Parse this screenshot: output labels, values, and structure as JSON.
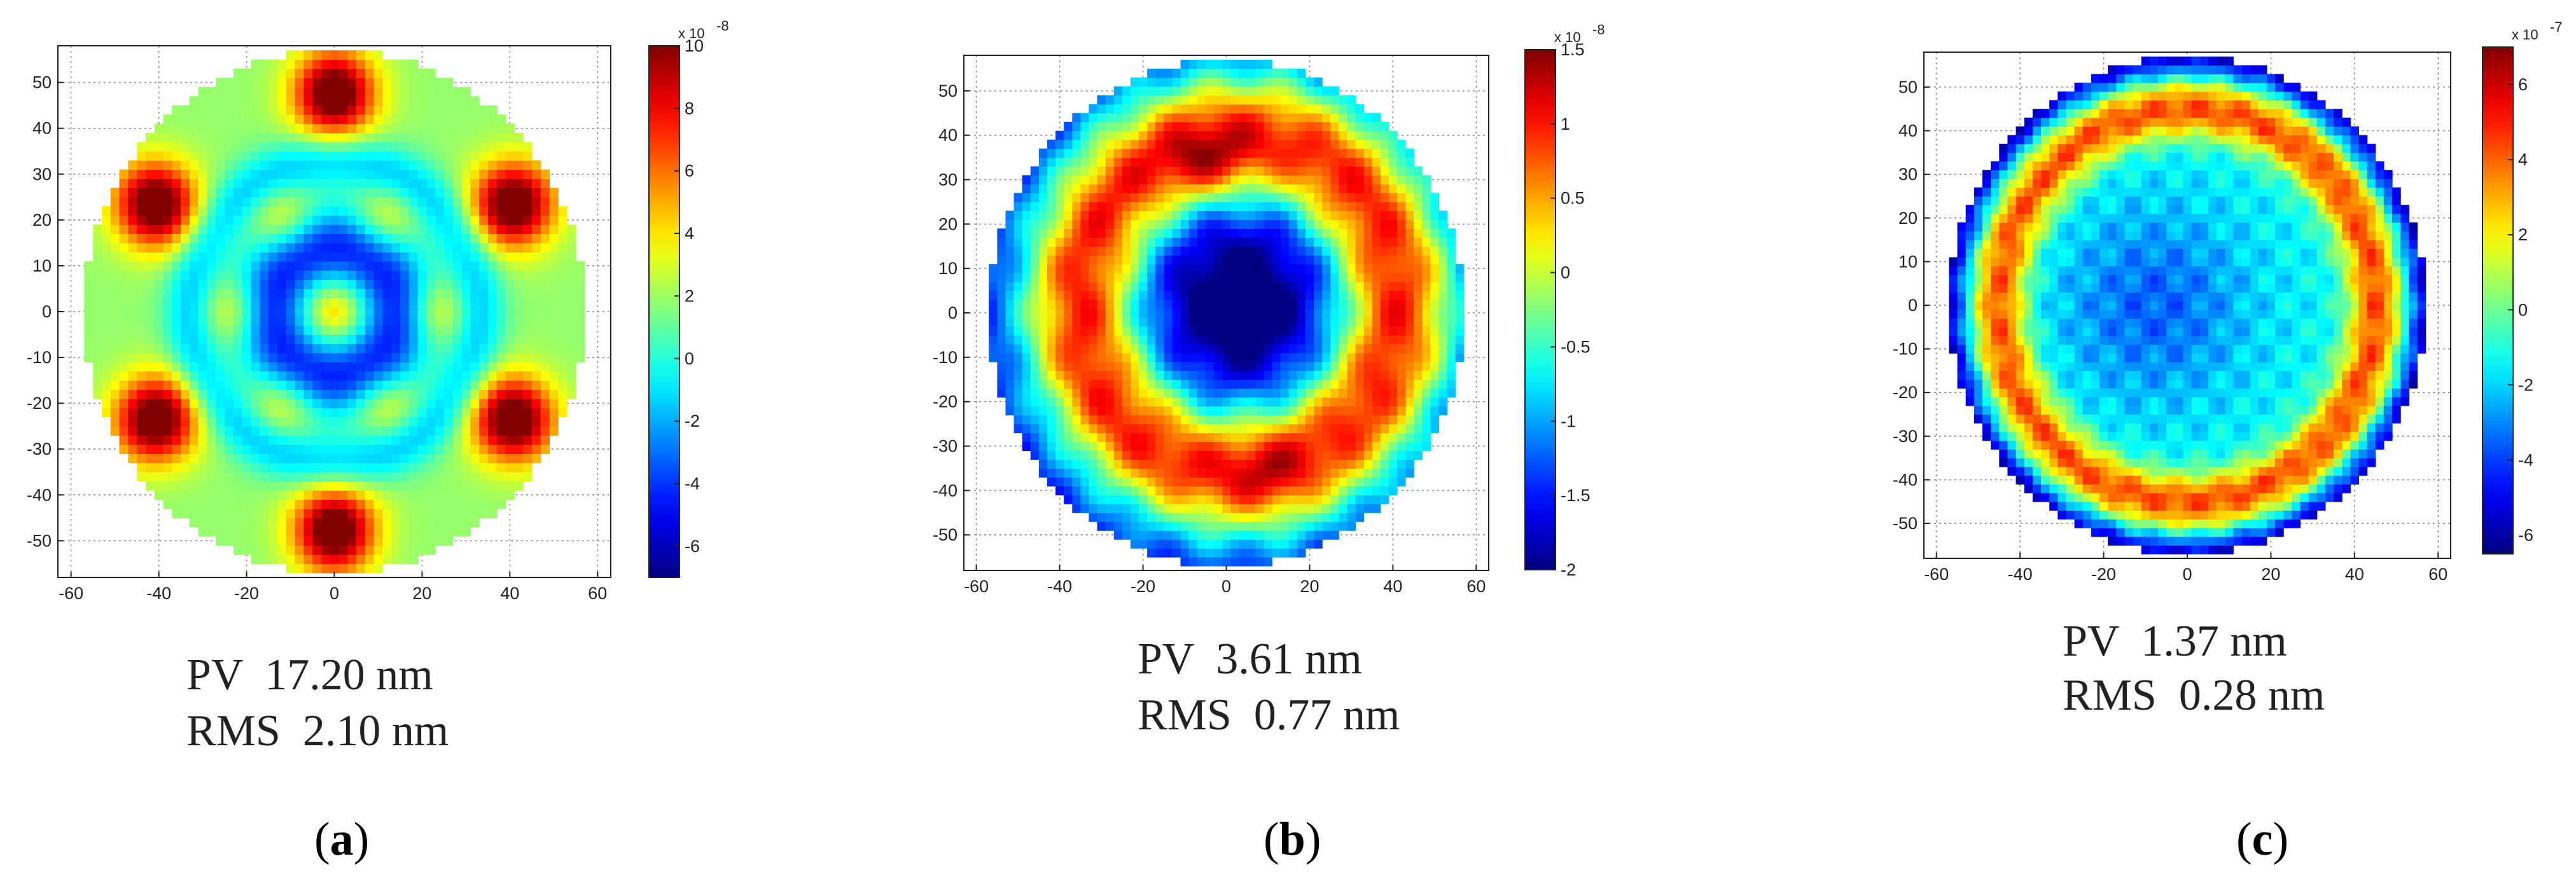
{
  "figure": {
    "panels": [
      {
        "id": "a",
        "label_open": "(",
        "label_letter": "a",
        "label_close": ")",
        "pv_text": "PV  17.20 nm",
        "rms_text": "RMS  2.10 nm"
      },
      {
        "id": "b",
        "label_open": "(",
        "label_letter": "b",
        "label_close": ")",
        "pv_text": "PV  3.61 nm",
        "rms_text": "RMS  0.77 nm"
      },
      {
        "id": "c",
        "label_open": "(",
        "label_letter": "c",
        "label_close": ")",
        "pv_text": "PV  1.37 nm",
        "rms_text": "RMS  0.28 nm"
      }
    ]
  },
  "chart_data": [
    {
      "type": "heatmap",
      "title": "",
      "xlabel": "",
      "ylabel": "",
      "xlim": [
        -63,
        63
      ],
      "ylim": [
        -58,
        58
      ],
      "xticks": [
        -60,
        -40,
        -20,
        0,
        20,
        40,
        60
      ],
      "yticks": [
        50,
        40,
        30,
        20,
        10,
        0,
        -10,
        -20,
        -30,
        -40,
        -50
      ],
      "grid": true,
      "aperture_radius": 57,
      "colorbar": {
        "range": [
          -7,
          10
        ],
        "ticks": [
          10,
          8,
          6,
          4,
          2,
          0,
          -2,
          -4,
          -6
        ],
        "exponent_text": "x 10",
        "exponent_power": "-8"
      },
      "pattern": "hexapole_spots",
      "features": [
        {
          "x": 0,
          "y": 47,
          "level": "high"
        },
        {
          "x": 0,
          "y": -47,
          "level": "high"
        },
        {
          "x": -40,
          "y": 23,
          "level": "high"
        },
        {
          "x": 40,
          "y": 23,
          "level": "high"
        },
        {
          "x": -40,
          "y": -23,
          "level": "high"
        },
        {
          "x": 40,
          "y": -23,
          "level": "high"
        }
      ],
      "pv_nm": 17.2,
      "rms_nm": 2.1
    },
    {
      "type": "heatmap",
      "title": "",
      "xlabel": "",
      "ylabel": "",
      "xlim": [
        -63,
        63
      ],
      "ylim": [
        -58,
        58
      ],
      "xticks": [
        -60,
        -40,
        -20,
        0,
        20,
        40,
        60
      ],
      "yticks": [
        50,
        40,
        30,
        20,
        10,
        0,
        -10,
        -20,
        -30,
        -40,
        -50
      ],
      "grid": true,
      "aperture_radius": 57,
      "colorbar": {
        "range": [
          -2,
          1.5
        ],
        "ticks": [
          1.5,
          1,
          0.5,
          0,
          -0.5,
          -1,
          -1.5,
          -2
        ],
        "exponent_text": "x 10",
        "exponent_power": "-8"
      },
      "pattern": "ring_high_center_low",
      "pv_nm": 3.61,
      "rms_nm": 0.77
    },
    {
      "type": "heatmap",
      "title": "",
      "xlabel": "",
      "ylabel": "",
      "xlim": [
        -63,
        63
      ],
      "ylim": [
        -58,
        58
      ],
      "xticks": [
        -60,
        -40,
        -20,
        0,
        20,
        40,
        60
      ],
      "yticks": [
        50,
        40,
        30,
        20,
        10,
        0,
        -10,
        -20,
        -30,
        -40,
        -50
      ],
      "grid": true,
      "aperture_radius": 57,
      "colorbar": {
        "range": [
          -6.5,
          7
        ],
        "ticks": [
          6,
          4,
          2,
          0,
          -2,
          -4,
          -6
        ],
        "exponent_text": "x 10",
        "exponent_power": "-7"
      },
      "pattern": "ring_high_center_low_edge_low",
      "pv_nm": 1.37,
      "rms_nm": 0.28
    }
  ]
}
